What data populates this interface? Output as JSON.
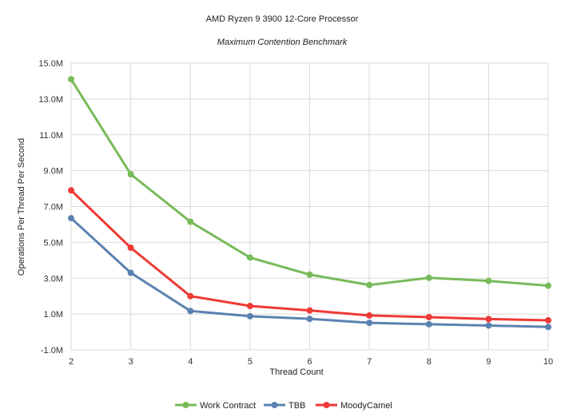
{
  "chart_data": {
    "type": "line",
    "title": "AMD Ryzen 9 3900 12-Core Processor",
    "subtitle": "Maximum Contention Benchmark",
    "xlabel": "Thread Count",
    "ylabel": "Operations Per Thread Per Second",
    "x": [
      2,
      3,
      4,
      5,
      6,
      7,
      8,
      9,
      10
    ],
    "ylim": [
      -1000000,
      15000000
    ],
    "yticks": [
      -1000000,
      1000000,
      3000000,
      5000000,
      7000000,
      9000000,
      11000000,
      13000000,
      15000000
    ],
    "ytick_labels": [
      "-1.0M",
      "1.0M",
      "3.0M",
      "5.0M",
      "7.0M",
      "9.0M",
      "11.0M",
      "13.0M",
      "15.0M"
    ],
    "grid": true,
    "legend_position": "bottom",
    "series": [
      {
        "name": "Work Contract",
        "color": "#77bb5a",
        "values": [
          14100000,
          8800000,
          6150000,
          4150000,
          3200000,
          2620000,
          3020000,
          2850000,
          2580000
        ]
      },
      {
        "name": "TBB",
        "color": "#5b82b0",
        "values": [
          6350000,
          3300000,
          1170000,
          880000,
          730000,
          510000,
          430000,
          360000,
          280000
        ]
      },
      {
        "name": "MoodyCamel",
        "color": "#ee3a36",
        "values": [
          7900000,
          4700000,
          2000000,
          1450000,
          1200000,
          920000,
          830000,
          720000,
          650000
        ]
      }
    ]
  }
}
